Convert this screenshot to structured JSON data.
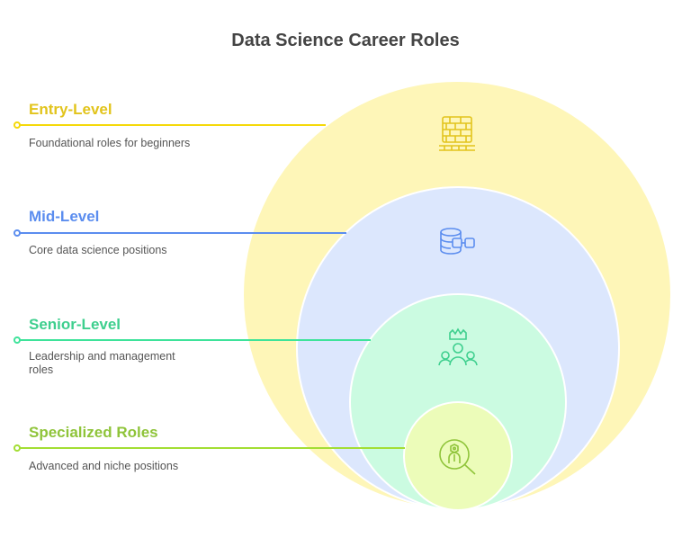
{
  "title": "Data Science Career Roles",
  "levels": [
    {
      "label": "Entry-Level",
      "description": "Foundational roles for beginners",
      "color": "#e2c41c",
      "fill": "#fef6b8",
      "icon": "brick-wall-icon"
    },
    {
      "label": "Mid-Level",
      "description": "Core data science positions",
      "color": "#5b8def",
      "fill": "#dce7fd",
      "icon": "database-network-icon"
    },
    {
      "label": "Senior-Level",
      "description": "Leadership and management roles",
      "color": "#3ecf8e",
      "fill": "#cbfbe1",
      "icon": "team-leader-crown-icon"
    },
    {
      "label": "Specialized Roles",
      "description": "Advanced and niche positions",
      "color": "#8fc43a",
      "fill": "#ecfcb9",
      "icon": "search-specialist-icon"
    }
  ]
}
